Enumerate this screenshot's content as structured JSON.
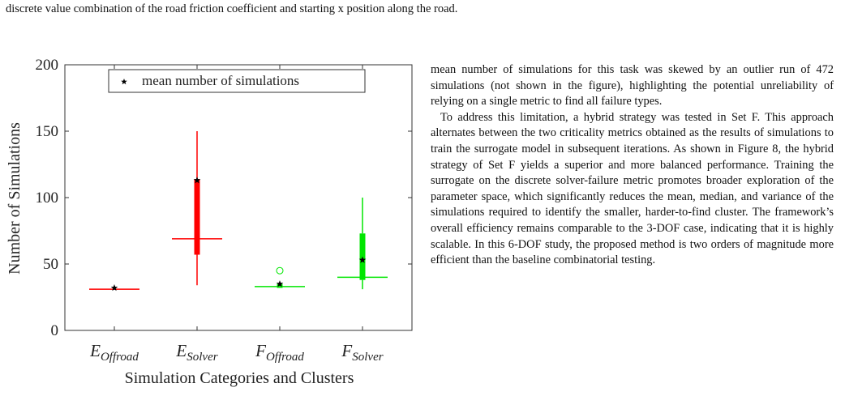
{
  "caption_tail": "discrete value combination of the road friction coefficient and starting x position along the road.",
  "chart_data": {
    "type": "box",
    "xlabel": "Simulation Categories and Clusters",
    "ylabel": "Number of Simulations",
    "categories": [
      {
        "main": "E",
        "sub": "Offroad"
      },
      {
        "main": "E",
        "sub": "Solver"
      },
      {
        "main": "F",
        "sub": "Offroad"
      },
      {
        "main": "F",
        "sub": "Solver"
      }
    ],
    "boxes": [
      {
        "min": 31,
        "q1": 31,
        "median": 31,
        "q3": 31,
        "max": 31,
        "mean": 32,
        "outliers": [],
        "color": "#ff0000"
      },
      {
        "min": 34,
        "q1": 57,
        "median": 69,
        "q3": 114,
        "max": 150,
        "mean": 113,
        "outliers": [],
        "color": "#ff0000"
      },
      {
        "min": 32,
        "q1": 32,
        "median": 33,
        "q3": 35,
        "max": 36,
        "mean": 35,
        "outliers": [
          45
        ],
        "color": "#00e600"
      },
      {
        "min": 31,
        "q1": 38,
        "median": 40,
        "q3": 73,
        "max": 100,
        "mean": 53,
        "outliers": [],
        "color": "#00e600"
      }
    ],
    "legend": {
      "label": "mean number of simulations"
    },
    "ylim": [
      0,
      200
    ],
    "yticks": [
      0,
      50,
      100,
      150,
      200
    ]
  },
  "body": {
    "paragraphs": [
      "mean number of simulations for this task was skewed by an outlier run of 472 simulations (not shown in the figure), highlighting the potential unreliability of relying on a single metric to find all failure types.",
      "To address this limitation, a hybrid strategy was tested in Set F. This approach alternates between the two criticality metrics obtained as the results of simulations to train the surrogate model in subsequent iterations. As shown in Figure 8, the hybrid strategy of Set F yields a superior and more balanced performance. Training the surrogate on the discrete solver-failure metric promotes broader exploration of the parameter space, which significantly reduces the mean, median, and variance of the simulations required to identify the smaller, harder-to-find cluster. The framework’s overall efficiency remains comparable to the 3-DOF case, indicating that it is highly scalable. In this 6-DOF study, the proposed method is two orders of magnitude more efficient than the baseline combinatorial testing."
    ]
  }
}
